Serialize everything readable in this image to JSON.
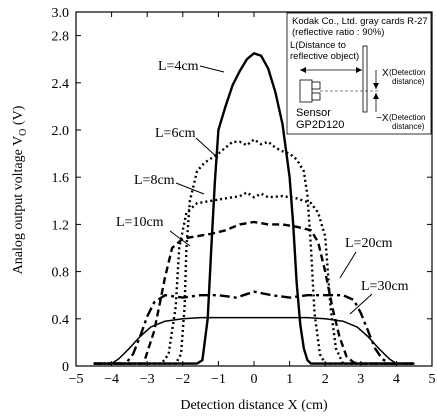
{
  "chart_data": {
    "type": "line",
    "xlabel": "Detection distance X (cm)",
    "ylabel": "Analog output voltage V",
    "ylabel_sub": "O",
    "ylabel_unit": " (V)",
    "xlim": [
      -5,
      5
    ],
    "ylim": [
      0,
      3.0
    ],
    "xticks": [
      -5,
      -4,
      -3,
      -2,
      -1,
      0,
      1,
      2,
      3,
      4,
      5
    ],
    "yticks": [
      0,
      0.4,
      0.8,
      1.2,
      1.6,
      2.0,
      2.4,
      2.8,
      3.0
    ],
    "ytick_labels": [
      "0",
      "0.4",
      "0.8",
      "1.2",
      "1.6",
      "2.0",
      "2.4",
      "2.8",
      "3.0"
    ],
    "grid": false,
    "series": [
      {
        "name": "L=4cm",
        "dash": "solid",
        "width": 2.4,
        "x": [
          -4.5,
          -1.6,
          -1.45,
          -1.3,
          -1.2,
          -1.1,
          -1.0,
          -0.8,
          -0.6,
          -0.4,
          -0.2,
          0.0,
          0.2,
          0.4,
          0.6,
          0.8,
          1.0,
          1.1,
          1.2,
          1.3,
          1.4,
          1.5,
          1.6,
          4.5
        ],
        "y": [
          0.02,
          0.02,
          0.05,
          0.4,
          1.0,
          1.55,
          2.0,
          2.2,
          2.38,
          2.5,
          2.6,
          2.65,
          2.63,
          2.52,
          2.32,
          2.05,
          1.6,
          1.2,
          0.7,
          0.35,
          0.15,
          0.05,
          0.02,
          0.02
        ]
      },
      {
        "name": "L=6cm",
        "dash": "dot",
        "width": 2.4,
        "x": [
          -4.5,
          -2.2,
          -2.05,
          -1.95,
          -1.9,
          -1.8,
          -1.6,
          -1.4,
          -1.2,
          -1.0,
          -0.8,
          -0.6,
          -0.4,
          -0.2,
          0.0,
          0.2,
          0.4,
          0.6,
          0.8,
          1.0,
          1.2,
          1.4,
          1.5,
          1.6,
          1.7,
          1.85,
          2.0,
          4.5
        ],
        "y": [
          0.02,
          0.02,
          0.1,
          0.5,
          1.0,
          1.4,
          1.65,
          1.72,
          1.76,
          1.8,
          1.85,
          1.9,
          1.9,
          1.87,
          1.92,
          1.88,
          1.9,
          1.85,
          1.82,
          1.8,
          1.75,
          1.65,
          1.45,
          1.0,
          0.45,
          0.1,
          0.02,
          0.02
        ]
      },
      {
        "name": "L=8cm",
        "dash": "dot",
        "width": 2.4,
        "x": [
          -4.5,
          -2.6,
          -2.4,
          -2.2,
          -2.1,
          -1.9,
          -1.6,
          -1.2,
          -0.8,
          -0.4,
          -0.2,
          0.0,
          0.2,
          0.4,
          0.8,
          1.2,
          1.6,
          1.8,
          2.0,
          2.15,
          2.3,
          2.5,
          4.5
        ],
        "y": [
          0.02,
          0.02,
          0.1,
          0.5,
          1.0,
          1.3,
          1.38,
          1.4,
          1.42,
          1.44,
          1.47,
          1.43,
          1.46,
          1.43,
          1.44,
          1.42,
          1.38,
          1.3,
          1.1,
          0.5,
          0.15,
          0.02,
          0.02
        ]
      },
      {
        "name": "L=10cm",
        "dash": "dash",
        "width": 2.4,
        "x": [
          -4.5,
          -3.1,
          -2.8,
          -2.5,
          -2.3,
          -2.0,
          -1.6,
          -1.2,
          -0.8,
          -0.4,
          0.0,
          0.4,
          0.8,
          1.2,
          1.6,
          1.8,
          2.0,
          2.2,
          2.4,
          2.6,
          2.8,
          3.0,
          4.5
        ],
        "y": [
          0.02,
          0.02,
          0.3,
          0.75,
          1.0,
          1.08,
          1.1,
          1.12,
          1.15,
          1.2,
          1.22,
          1.2,
          1.2,
          1.18,
          1.15,
          1.05,
          0.8,
          0.5,
          0.25,
          0.08,
          0.03,
          0.02,
          0.02
        ]
      },
      {
        "name": "L=20cm",
        "dash": "dashdot",
        "width": 2.4,
        "x": [
          -4.5,
          -3.6,
          -3.4,
          -3.2,
          -3.0,
          -2.8,
          -2.5,
          -2.0,
          -1.5,
          -1.0,
          -0.5,
          0.0,
          0.5,
          1.0,
          1.5,
          2.0,
          2.5,
          2.8,
          3.0,
          3.2,
          3.4,
          3.6,
          3.8,
          4.5
        ],
        "y": [
          0.02,
          0.02,
          0.1,
          0.25,
          0.42,
          0.54,
          0.6,
          0.58,
          0.6,
          0.6,
          0.58,
          0.63,
          0.6,
          0.58,
          0.6,
          0.6,
          0.6,
          0.56,
          0.45,
          0.3,
          0.15,
          0.06,
          0.02,
          0.02
        ]
      },
      {
        "name": "L=30cm",
        "dash": "solid",
        "width": 1.5,
        "x": [
          -4.5,
          -4.0,
          -3.8,
          -3.5,
          -3.2,
          -2.9,
          -2.5,
          -2.0,
          -1.5,
          -1.0,
          -0.5,
          0.0,
          0.5,
          1.0,
          1.5,
          2.0,
          2.5,
          2.9,
          3.2,
          3.5,
          3.8,
          4.0,
          4.5
        ],
        "y": [
          0.02,
          0.02,
          0.06,
          0.15,
          0.25,
          0.33,
          0.38,
          0.4,
          0.41,
          0.41,
          0.41,
          0.41,
          0.41,
          0.41,
          0.41,
          0.4,
          0.38,
          0.33,
          0.25,
          0.15,
          0.06,
          0.02,
          0.02
        ]
      }
    ],
    "inset": {
      "line1": "Kodak Co., Ltd. gray cards R-27",
      "line2": "(reflective ratio : 90%)",
      "l_label_1": "L(Distance to",
      "l_label_2": "reflective object)",
      "x_pos_label": "X",
      "x_pos_detail_1": "(Detection",
      "x_pos_detail_2": "distance)",
      "x_neg_label": "−X",
      "x_neg_detail_1": "(Detection",
      "x_neg_detail_2": "distance)",
      "sensor_1": "Sensor",
      "sensor_2": "GP2D120"
    }
  }
}
